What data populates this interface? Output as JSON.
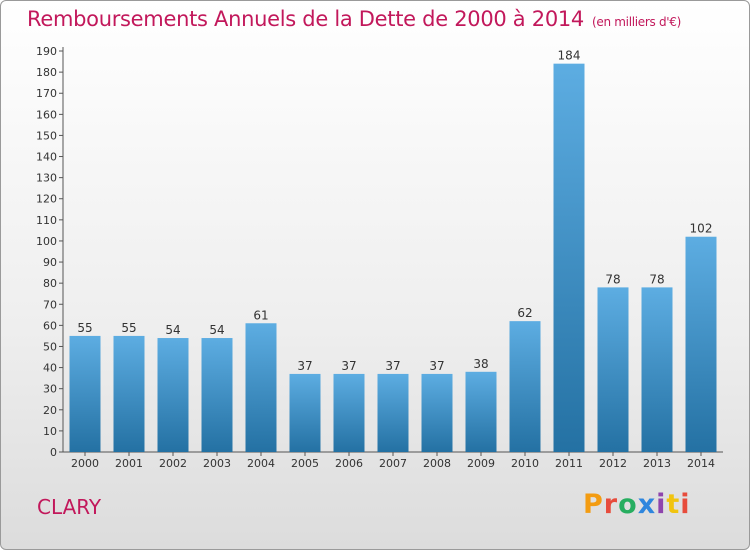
{
  "header": {
    "title": "Remboursements Annuels de la Dette de 2000 à 2014",
    "unit_note": "(en milliers d'€)"
  },
  "footer": {
    "commune": "CLARY",
    "logo_text": "Proxiti",
    "logo_colors": [
      "#f39c12",
      "#e74c3c",
      "#27ae60",
      "#2e86de",
      "#8e44ad",
      "#f1c40f",
      "#e74c3c"
    ]
  },
  "chart_data": {
    "type": "bar",
    "title": "Remboursements Annuels de la Dette de 2000 à 2014",
    "subtitle": "(en milliers d'€)",
    "xlabel": "",
    "ylabel": "",
    "categories": [
      "2000",
      "2001",
      "2002",
      "2003",
      "2004",
      "2005",
      "2006",
      "2007",
      "2008",
      "2009",
      "2010",
      "2011",
      "2012",
      "2013",
      "2014"
    ],
    "values": [
      55,
      55,
      54,
      54,
      61,
      37,
      37,
      37,
      37,
      38,
      62,
      184,
      78,
      78,
      102
    ],
    "ylim": [
      0,
      190
    ],
    "ytick_step": 10,
    "grid": false,
    "bar_color_light": "#5dade2",
    "bar_color_dark": "#2471a3"
  }
}
